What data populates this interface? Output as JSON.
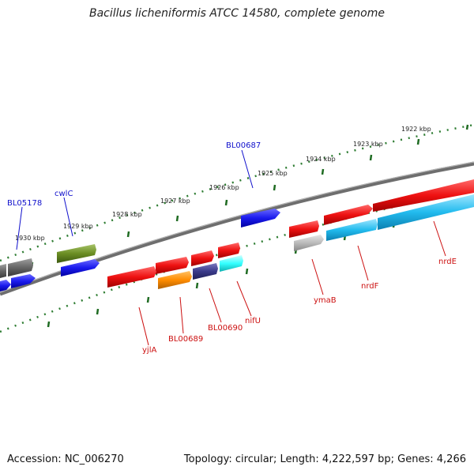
{
  "title": "Bacillus licheniformis ATCC 14580, complete genome",
  "footer": {
    "accession": "Accession: NC_006270",
    "topology": "Topology: circular; Length: 4,222,597 bp; Genes: 4,266"
  },
  "scale": {
    "labels": [
      "1922 kbp",
      "1923 kbp",
      "1924 kbp",
      "1925 kbp",
      "1926 kbp",
      "1927 kbp",
      "1928 kbp",
      "1929 kbp",
      "1930 kbp"
    ]
  },
  "gene_labels": [
    {
      "text": "BL05178",
      "strand": "forward",
      "color": "#1010cc"
    },
    {
      "text": "cwlC",
      "strand": "forward",
      "color": "#1010cc"
    },
    {
      "text": "BL00687",
      "strand": "forward",
      "color": "#1010cc"
    },
    {
      "text": "yjlA",
      "strand": "reverse",
      "color": "#cc1010"
    },
    {
      "text": "BL00689",
      "strand": "reverse",
      "color": "#cc1010"
    },
    {
      "text": "BL00690",
      "strand": "reverse",
      "color": "#cc1010"
    },
    {
      "text": "nifU",
      "strand": "reverse",
      "color": "#cc1010"
    },
    {
      "text": "ymaB",
      "strand": "reverse",
      "color": "#cc1010"
    },
    {
      "text": "nrdF",
      "strand": "reverse",
      "color": "#cc1010"
    },
    {
      "text": "nrdE",
      "strand": "reverse",
      "color": "#cc1010"
    }
  ],
  "colors": {
    "backbone": "#7a7a7a",
    "ticks": "#2e7d32",
    "forward_blue": "#1a1aee",
    "reverse_red": "#ee1111",
    "cyan": "#22bbee",
    "olive": "#6b8e23",
    "gray": "#666666",
    "orange": "#ff8c00",
    "navy": "#3a3a8a",
    "light_cyan": "#33ffff",
    "light_gray": "#bbbbbb"
  }
}
